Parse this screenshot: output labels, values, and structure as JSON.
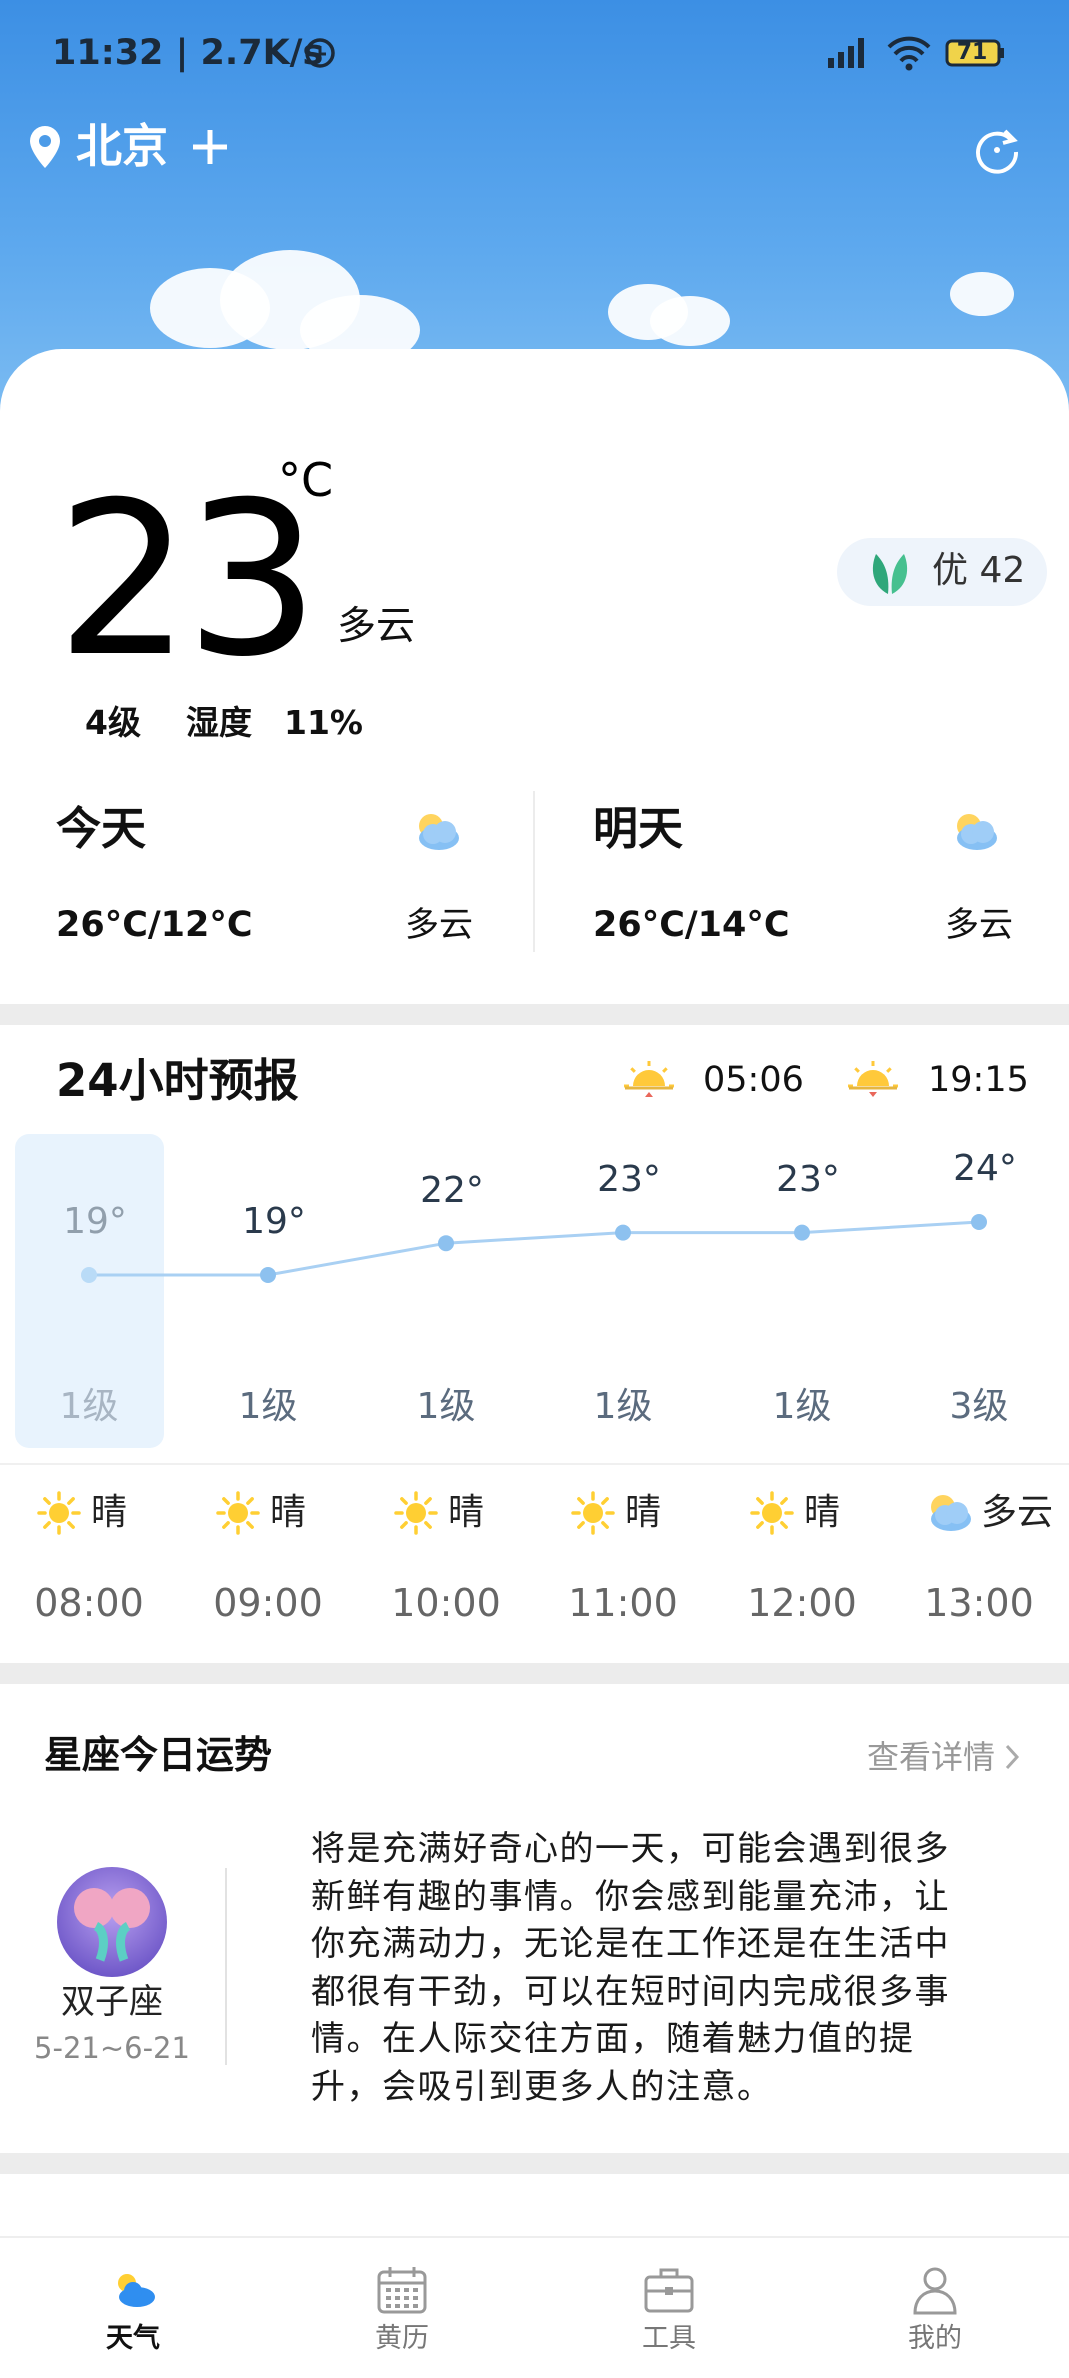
{
  "status_bar": {
    "time_speed": "11:32 | 2.7K/s",
    "battery": "71"
  },
  "header": {
    "city": "北京"
  },
  "current": {
    "temperature": "23",
    "unit": "°C",
    "condition": "多云",
    "aqi": "优 42",
    "wind": "4级",
    "humidity_label": "湿度",
    "humidity": "11%"
  },
  "daily": [
    {
      "day": "今天",
      "temp_range": "26°C/12°C",
      "condition": "多云"
    },
    {
      "day": "明天",
      "temp_range": "26°C/14°C",
      "condition": "多云"
    }
  ],
  "hourly": {
    "title": "24小时预报",
    "sunrise": "05:06",
    "sunset": "19:15",
    "temps": [
      19,
      19,
      22,
      23,
      23,
      24
    ],
    "temp_labels": [
      "19°",
      "19°",
      "22°",
      "23°",
      "23°",
      "24°"
    ],
    "wind": [
      "1级",
      "1级",
      "1级",
      "1级",
      "1级",
      "3级"
    ],
    "conditions": [
      "晴",
      "晴",
      "晴",
      "晴",
      "晴",
      "多云"
    ],
    "times": [
      "08:00",
      "09:00",
      "10:00",
      "11:00",
      "12:00",
      "13:00"
    ]
  },
  "horoscope": {
    "title": "星座今日运势",
    "more": "查看详情",
    "sign": "双子座",
    "dates": "5-21~6-21",
    "text": "将是充满好奇心的一天，可能会遇到很多新鲜有趣的事情。你会感到能量充沛，让你充满动力，无论是在工作还是在生活中都很有干劲，可以在短时间内完成很多事情。在人际交往方面，随着魅力值的提升，会吸引到更多人的注意。"
  },
  "nav": [
    "天气",
    "黄历",
    "工具",
    "我的"
  ]
}
